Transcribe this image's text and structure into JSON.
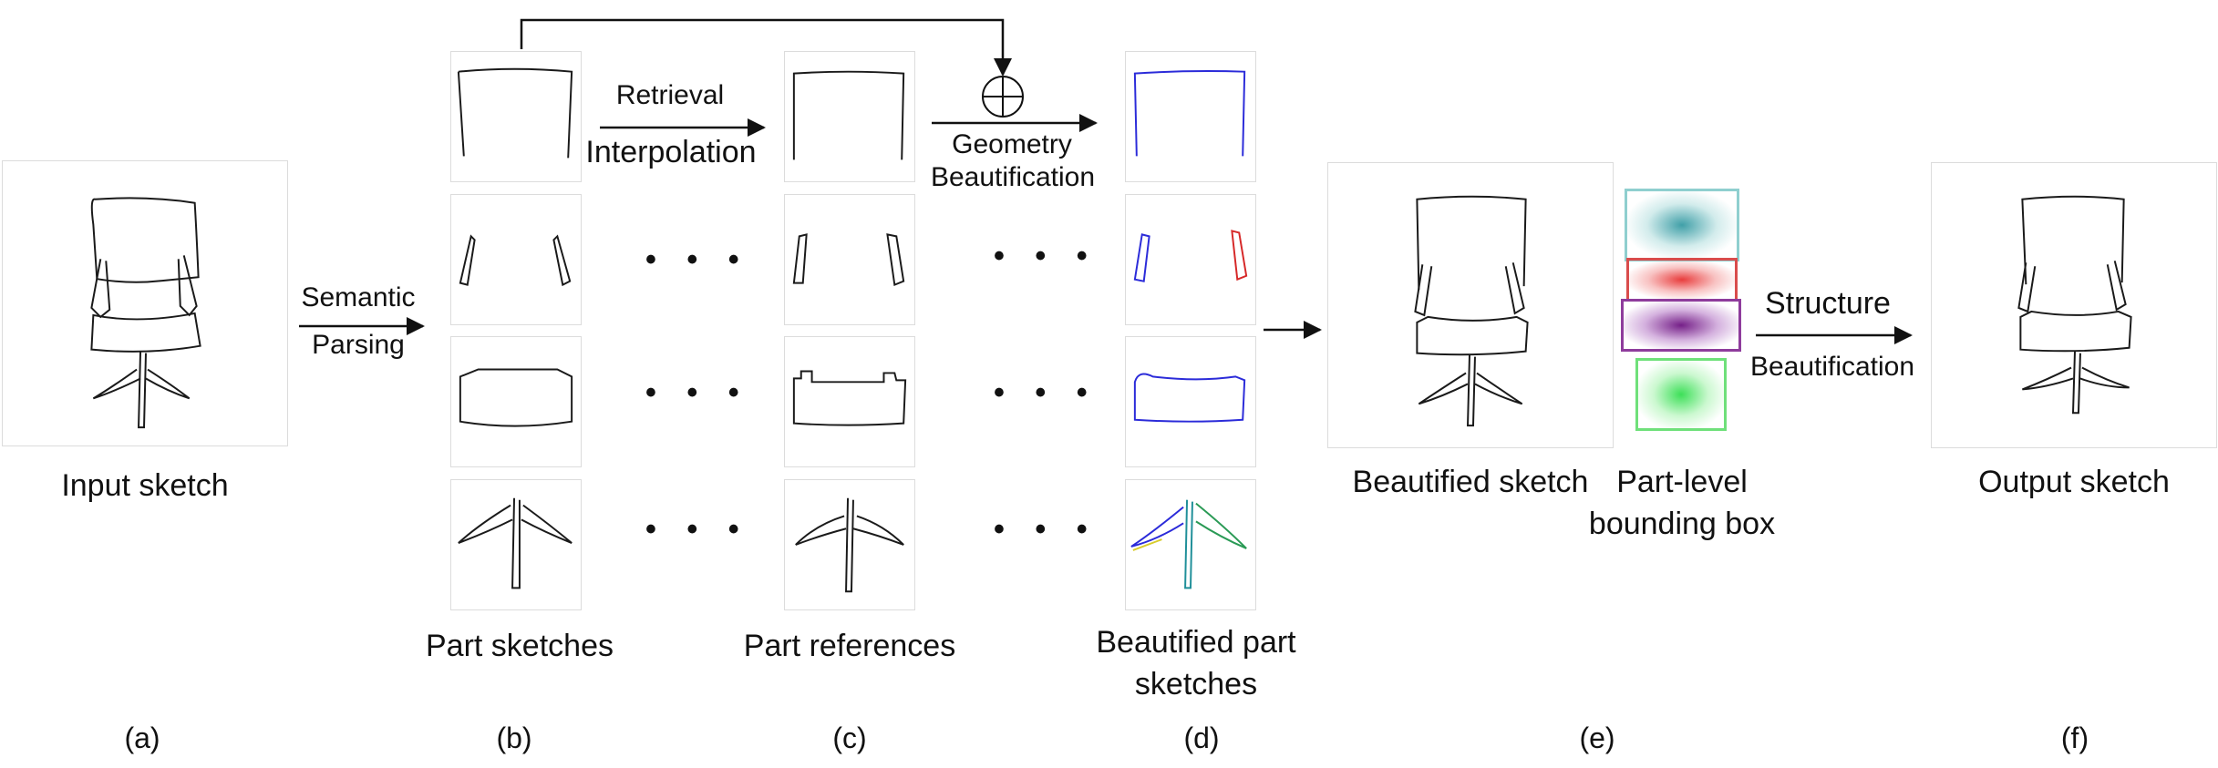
{
  "labels": {
    "input_sketch": "Input sketch",
    "semantic": "Semantic",
    "parsing": "Parsing",
    "retrieval": "Retrieval",
    "interpolation": "Interpolation",
    "geometry": "Geometry",
    "beautification": "Beautification",
    "part_sketches": "Part sketches",
    "part_references": "Part references",
    "beautified_part_line1": "Beautified part",
    "beautified_part_line2": "sketches",
    "beautified_sketch": "Beautified sketch",
    "part_level_line1": "Part-level",
    "part_level_line2": "bounding box",
    "structure": "Structure",
    "structure_beautification": "Beautification",
    "output_sketch": "Output sketch",
    "dots": "• • •",
    "plus_symbol": "⊕"
  },
  "captions": [
    "(a)",
    "(b)",
    "(c)",
    "(d)",
    "(e)",
    "(f)"
  ],
  "colors": {
    "stroke": "#1a1a1a",
    "blue": "#2b2bd9",
    "red": "#d62828",
    "teal": "#1f8f99",
    "yellow": "#d8cc2a",
    "green_stroke": "#2a9a55",
    "bbox_teal": "#8fcfcf",
    "bbox_red": "#d94c4c",
    "bbox_purple": "#8e3c9c",
    "bbox_green": "#6fe07a"
  }
}
